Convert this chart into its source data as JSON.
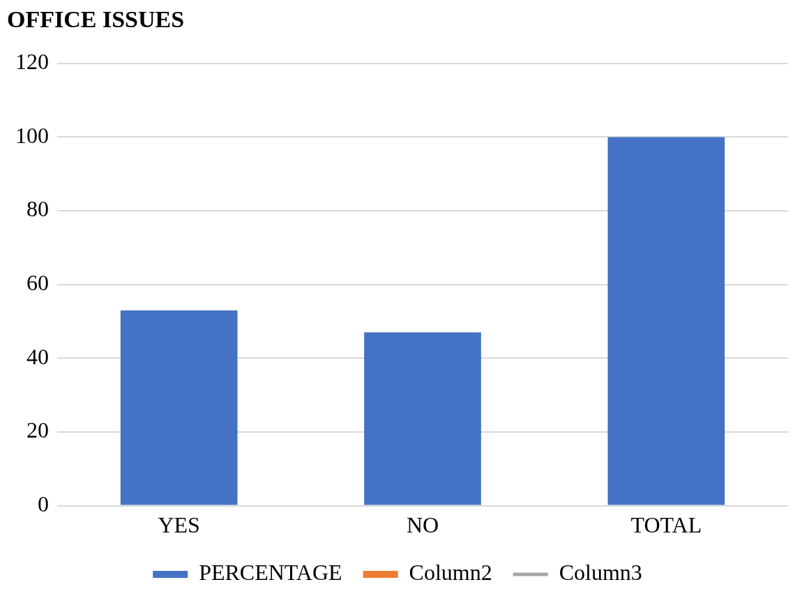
{
  "chart_data": {
    "type": "bar",
    "title": "OFFICE ISSUES",
    "categories": [
      "YES",
      "NO",
      "TOTAL"
    ],
    "series": [
      {
        "name": "PERCENTAGE",
        "color": "#4472c4",
        "values": [
          53,
          47,
          100
        ]
      },
      {
        "name": "Column2",
        "color": "#ed7d31",
        "values": [
          null,
          null,
          null
        ]
      },
      {
        "name": "Column3",
        "type": "line",
        "color": "#a5a5a5",
        "values": [
          null,
          null,
          null
        ]
      }
    ],
    "ylim": [
      0,
      120
    ],
    "yticks": [
      0,
      20,
      40,
      60,
      80,
      100,
      120
    ],
    "grid": "y",
    "legend": "bottom"
  }
}
